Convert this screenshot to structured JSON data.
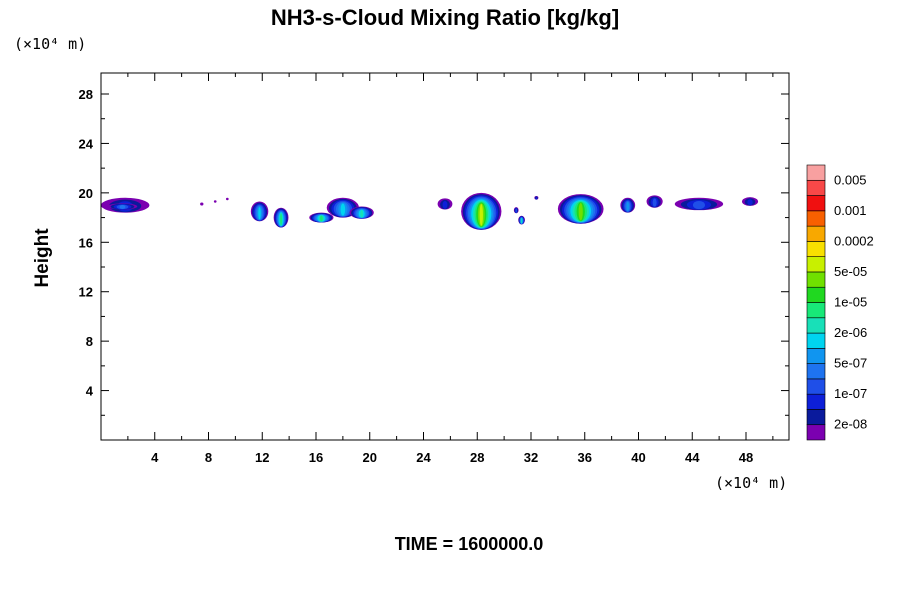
{
  "chart_data": {
    "type": "heatmap",
    "title": "NH3-s-Cloud Mixing Ratio [kg/kg]",
    "ylabel": "Height",
    "xlabel": "",
    "y_unit": "(×10⁴ m)",
    "x_unit": "(×10⁴ m)",
    "xlim": [
      0,
      51.2
    ],
    "ylim": [
      0,
      29.7
    ],
    "xticks": [
      4,
      8,
      12,
      16,
      20,
      24,
      28,
      32,
      36,
      40,
      44,
      48
    ],
    "yticks": [
      4,
      8,
      12,
      16,
      20,
      24,
      28
    ],
    "colorbar": {
      "colors": [
        "#7b00b0",
        "#0a1a9c",
        "#0d1fd8",
        "#1f4fe8",
        "#1e73f0",
        "#1095f0",
        "#00d4f0",
        "#18e0b8",
        "#18e878",
        "#20d820",
        "#70e000",
        "#c8f000",
        "#f8e000",
        "#f8a800",
        "#f86000",
        "#f01010",
        "#f84848",
        "#f8a0a0"
      ],
      "labels": [
        "2e-08",
        "1e-07",
        "5e-07",
        "2e-06",
        "1e-05",
        "5e-05",
        "0.0002",
        "0.001",
        "0.005"
      ]
    },
    "clouds": [
      {
        "x": 1.8,
        "y": 19.0,
        "w": 3.6,
        "h": 1.2,
        "level": 2
      },
      {
        "x": 1.6,
        "y": 18.9,
        "w": 2.2,
        "h": 0.5,
        "level": 4
      },
      {
        "x": 7.5,
        "y": 19.1,
        "w": 0.25,
        "h": 0.25,
        "level": 0
      },
      {
        "x": 8.5,
        "y": 19.3,
        "w": 0.2,
        "h": 0.2,
        "level": 0
      },
      {
        "x": 9.4,
        "y": 19.5,
        "w": 0.2,
        "h": 0.2,
        "level": 0
      },
      {
        "x": 11.8,
        "y": 18.5,
        "w": 1.3,
        "h": 1.6,
        "level": 6
      },
      {
        "x": 13.4,
        "y": 18.0,
        "w": 1.1,
        "h": 1.6,
        "level": 8
      },
      {
        "x": 16.4,
        "y": 18.0,
        "w": 1.8,
        "h": 0.8,
        "level": 8
      },
      {
        "x": 18.0,
        "y": 18.8,
        "w": 2.4,
        "h": 1.6,
        "level": 6
      },
      {
        "x": 19.4,
        "y": 18.4,
        "w": 1.8,
        "h": 1.0,
        "level": 7
      },
      {
        "x": 25.6,
        "y": 19.1,
        "w": 1.1,
        "h": 0.9,
        "level": 2
      },
      {
        "x": 28.3,
        "y": 18.5,
        "w": 3.0,
        "h": 3.0,
        "level": 11
      },
      {
        "x": 30.9,
        "y": 18.6,
        "w": 0.35,
        "h": 0.5,
        "level": 3
      },
      {
        "x": 31.3,
        "y": 17.8,
        "w": 0.5,
        "h": 0.7,
        "level": 7
      },
      {
        "x": 32.4,
        "y": 19.6,
        "w": 0.3,
        "h": 0.3,
        "level": 2
      },
      {
        "x": 35.7,
        "y": 18.7,
        "w": 3.4,
        "h": 2.4,
        "level": 10
      },
      {
        "x": 39.2,
        "y": 19.0,
        "w": 1.1,
        "h": 1.2,
        "level": 5
      },
      {
        "x": 41.2,
        "y": 19.3,
        "w": 1.2,
        "h": 1.0,
        "level": 3
      },
      {
        "x": 44.5,
        "y": 19.1,
        "w": 3.6,
        "h": 1.0,
        "level": 3
      },
      {
        "x": 48.3,
        "y": 19.3,
        "w": 1.2,
        "h": 0.7,
        "level": 2
      }
    ]
  },
  "footer": {
    "time_label": "TIME = 1600000.0"
  }
}
